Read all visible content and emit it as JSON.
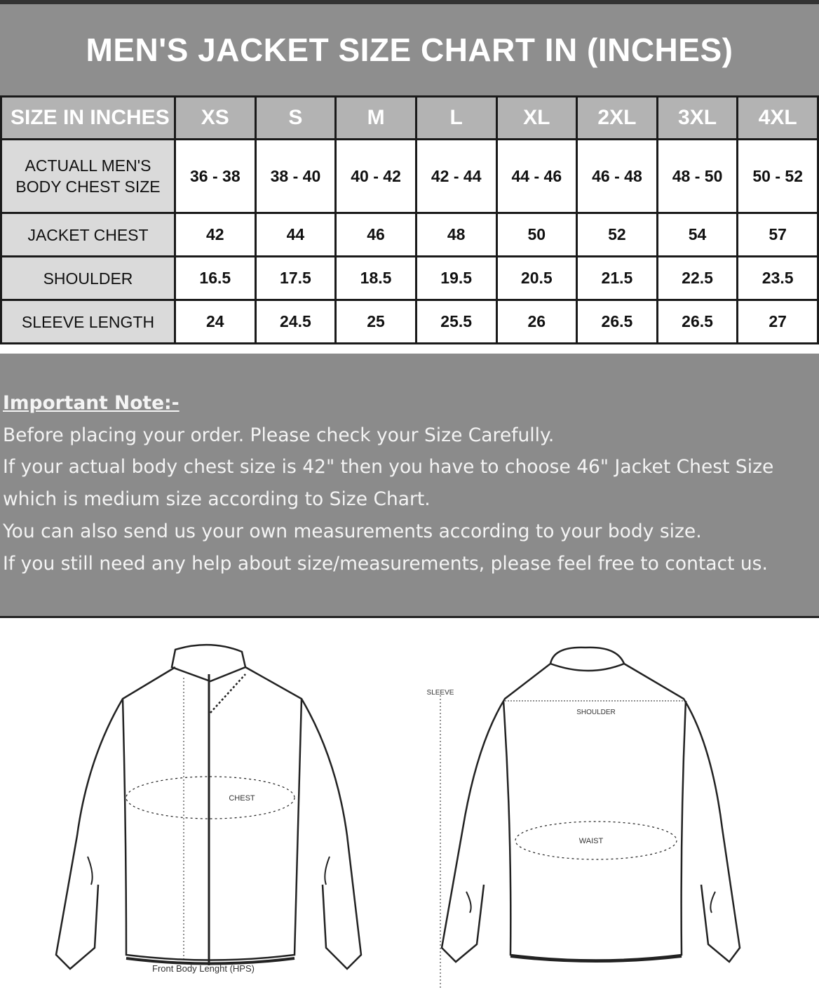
{
  "title": "MEN'S JACKET SIZE CHART IN (INCHES)",
  "table": {
    "header_label": "SIZE IN INCHES",
    "sizes": [
      "XS",
      "S",
      "M",
      "L",
      "XL",
      "2XL",
      "3XL",
      "4XL"
    ],
    "rows": [
      {
        "label_line1": "ACTUALL MEN'S",
        "label_line2": "BODY CHEST SIZE",
        "values": [
          "36 - 38",
          "38 - 40",
          "40 - 42",
          "42 - 44",
          "44 - 46",
          "46 - 48",
          "48 - 50",
          "50 - 52"
        ]
      },
      {
        "label_line1": "JACKET CHEST",
        "values": [
          "42",
          "44",
          "46",
          "48",
          "50",
          "52",
          "54",
          "57"
        ]
      },
      {
        "label_line1": "SHOULDER",
        "values": [
          "16.5",
          "17.5",
          "18.5",
          "19.5",
          "20.5",
          "21.5",
          "22.5",
          "23.5"
        ]
      },
      {
        "label_line1": "SLEEVE LENGTH",
        "values": [
          "24",
          "24.5",
          "25",
          "25.5",
          "26",
          "26.5",
          "26.5",
          "27"
        ]
      }
    ]
  },
  "note": {
    "heading": "Important Note:-",
    "lines": [
      "Before placing your order. Please check your Size Carefully.",
      "If your actual body chest size is 42\" then you have to choose 46\" Jacket Chest Size which is medium size according to Size Chart.",
      "You can also send us your own measurements according to your body size.",
      "If you still need any help about size/measurements, please feel free to contact us."
    ]
  },
  "diagram": {
    "front": {
      "chest_label": "CHEST",
      "length_label": "Front Body Lenght (HPS)"
    },
    "back": {
      "sleeve_label": "SLEEVE",
      "shoulder_label": "SHOULDER",
      "waist_label": "WAIST"
    }
  }
}
